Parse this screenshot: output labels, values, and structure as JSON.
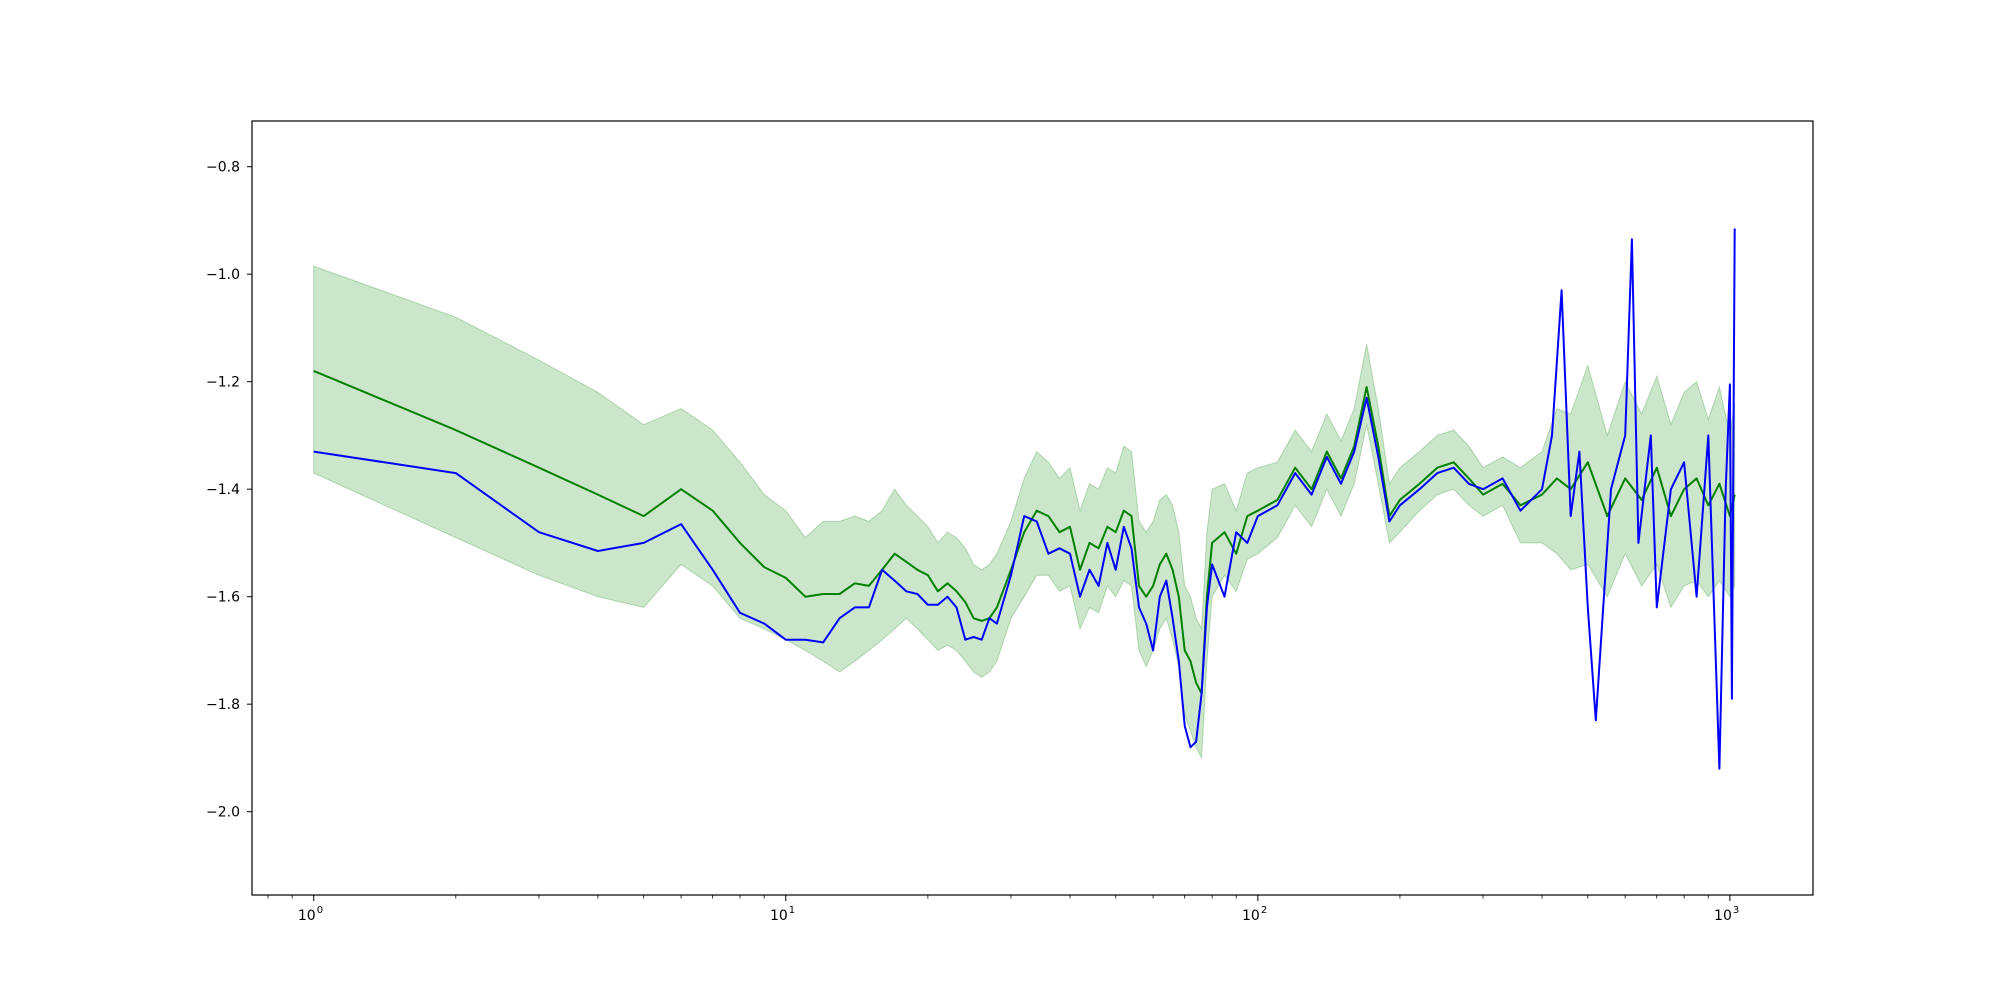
{
  "chart_data": {
    "type": "line",
    "title": "",
    "xlabel": "",
    "ylabel": "",
    "x_scale": "log",
    "xlim": [
      0.74,
      1500
    ],
    "ylim": [
      -2.155,
      -0.715
    ],
    "grid": false,
    "legend": "none",
    "x_ticks": [
      {
        "value": 1,
        "base": "10",
        "exp": "0"
      },
      {
        "value": 10,
        "base": "10",
        "exp": "1"
      },
      {
        "value": 100,
        "base": "10",
        "exp": "2"
      },
      {
        "value": 1000,
        "base": "10",
        "exp": "3"
      }
    ],
    "y_ticks": [
      {
        "value": -0.8,
        "label": "−0.8"
      },
      {
        "value": -1.0,
        "label": "−1.0"
      },
      {
        "value": -1.2,
        "label": "−1.2"
      },
      {
        "value": -1.4,
        "label": "−1.4"
      },
      {
        "value": -1.6,
        "label": "−1.6"
      },
      {
        "value": -1.8,
        "label": "−1.8"
      },
      {
        "value": -2.0,
        "label": "−2.0"
      }
    ],
    "series": [
      {
        "color": "#008000",
        "band_color": "#008000",
        "band_opacity": 0.2,
        "x": [
          1,
          2,
          3,
          4,
          5,
          6,
          7,
          8,
          9,
          10,
          11,
          12,
          13,
          14,
          15,
          16,
          17,
          18,
          19,
          20,
          21,
          22,
          23,
          24,
          25,
          26,
          27,
          28,
          30,
          32,
          34,
          36,
          38,
          40,
          42,
          44,
          46,
          48,
          50,
          52,
          54,
          56,
          58,
          60,
          62,
          64,
          66,
          68,
          70,
          72,
          74,
          76,
          78,
          80,
          85,
          90,
          95,
          100,
          110,
          120,
          130,
          140,
          150,
          160,
          170,
          180,
          190,
          200,
          220,
          240,
          260,
          280,
          300,
          330,
          360,
          400,
          430,
          460,
          500,
          550,
          600,
          650,
          700,
          750,
          800,
          850,
          900,
          950,
          1000,
          1024
        ],
        "y": [
          -1.18,
          -1.29,
          -1.36,
          -1.41,
          -1.45,
          -1.4,
          -1.44,
          -1.5,
          -1.545,
          -1.565,
          -1.6,
          -1.595,
          -1.595,
          -1.575,
          -1.58,
          -1.55,
          -1.52,
          -1.535,
          -1.55,
          -1.56,
          -1.59,
          -1.575,
          -1.59,
          -1.61,
          -1.64,
          -1.645,
          -1.64,
          -1.62,
          -1.55,
          -1.48,
          -1.44,
          -1.45,
          -1.48,
          -1.47,
          -1.55,
          -1.5,
          -1.51,
          -1.47,
          -1.48,
          -1.44,
          -1.45,
          -1.58,
          -1.6,
          -1.58,
          -1.54,
          -1.52,
          -1.55,
          -1.6,
          -1.7,
          -1.72,
          -1.76,
          -1.78,
          -1.6,
          -1.5,
          -1.48,
          -1.52,
          -1.45,
          -1.44,
          -1.42,
          -1.36,
          -1.4,
          -1.33,
          -1.38,
          -1.32,
          -1.21,
          -1.32,
          -1.45,
          -1.42,
          -1.39,
          -1.36,
          -1.35,
          -1.38,
          -1.41,
          -1.39,
          -1.43,
          -1.41,
          -1.38,
          -1.4,
          -1.35,
          -1.45,
          -1.38,
          -1.42,
          -1.36,
          -1.45,
          -1.4,
          -1.38,
          -1.43,
          -1.39,
          -1.45,
          -1.41
        ],
        "lower": [
          -1.37,
          -1.49,
          -1.56,
          -1.6,
          -1.62,
          -1.54,
          -1.58,
          -1.64,
          -1.66,
          -1.68,
          -1.7,
          -1.72,
          -1.74,
          -1.72,
          -1.7,
          -1.68,
          -1.66,
          -1.64,
          -1.66,
          -1.68,
          -1.7,
          -1.69,
          -1.7,
          -1.72,
          -1.74,
          -1.75,
          -1.74,
          -1.72,
          -1.64,
          -1.6,
          -1.56,
          -1.56,
          -1.59,
          -1.58,
          -1.66,
          -1.62,
          -1.63,
          -1.58,
          -1.6,
          -1.57,
          -1.58,
          -1.7,
          -1.73,
          -1.7,
          -1.66,
          -1.64,
          -1.68,
          -1.73,
          -1.82,
          -1.85,
          -1.88,
          -1.9,
          -1.72,
          -1.6,
          -1.56,
          -1.59,
          -1.53,
          -1.52,
          -1.49,
          -1.43,
          -1.47,
          -1.4,
          -1.45,
          -1.39,
          -1.28,
          -1.39,
          -1.5,
          -1.48,
          -1.44,
          -1.41,
          -1.4,
          -1.43,
          -1.45,
          -1.43,
          -1.5,
          -1.5,
          -1.52,
          -1.55,
          -1.54,
          -1.6,
          -1.52,
          -1.58,
          -1.54,
          -1.62,
          -1.58,
          -1.57,
          -1.6,
          -1.57,
          -1.6,
          -1.58
        ],
        "upper": [
          -0.985,
          -1.08,
          -1.16,
          -1.22,
          -1.28,
          -1.25,
          -1.29,
          -1.35,
          -1.41,
          -1.44,
          -1.49,
          -1.46,
          -1.46,
          -1.45,
          -1.46,
          -1.44,
          -1.4,
          -1.43,
          -1.45,
          -1.47,
          -1.5,
          -1.48,
          -1.49,
          -1.51,
          -1.54,
          -1.55,
          -1.54,
          -1.52,
          -1.46,
          -1.38,
          -1.33,
          -1.35,
          -1.38,
          -1.36,
          -1.44,
          -1.39,
          -1.4,
          -1.36,
          -1.37,
          -1.32,
          -1.33,
          -1.46,
          -1.48,
          -1.46,
          -1.42,
          -1.41,
          -1.43,
          -1.48,
          -1.58,
          -1.6,
          -1.64,
          -1.66,
          -1.48,
          -1.4,
          -1.39,
          -1.44,
          -1.37,
          -1.36,
          -1.35,
          -1.29,
          -1.33,
          -1.26,
          -1.31,
          -1.25,
          -1.13,
          -1.25,
          -1.39,
          -1.36,
          -1.33,
          -1.3,
          -1.29,
          -1.32,
          -1.36,
          -1.34,
          -1.36,
          -1.33,
          -1.25,
          -1.26,
          -1.17,
          -1.3,
          -1.2,
          -1.26,
          -1.19,
          -1.28,
          -1.22,
          -1.2,
          -1.27,
          -1.21,
          -1.3,
          -1.24
        ]
      },
      {
        "color": "#0000ff",
        "band_color": "#0000ff",
        "band_opacity": 0.2,
        "x": [
          1,
          2,
          3,
          4,
          5,
          6,
          7,
          8,
          9,
          10,
          11,
          12,
          13,
          14,
          15,
          16,
          17,
          18,
          19,
          20,
          21,
          22,
          23,
          24,
          25,
          26,
          27,
          28,
          30,
          32,
          34,
          36,
          38,
          40,
          42,
          44,
          46,
          48,
          50,
          52,
          54,
          56,
          58,
          60,
          62,
          64,
          66,
          68,
          70,
          72,
          74,
          76,
          78,
          80,
          85,
          90,
          95,
          100,
          110,
          120,
          130,
          140,
          150,
          160,
          170,
          180,
          190,
          200,
          220,
          240,
          260,
          280,
          300,
          330,
          360,
          400,
          420,
          440,
          460,
          480,
          500,
          520,
          560,
          600,
          620,
          640,
          680,
          700,
          750,
          800,
          850,
          900,
          950,
          980,
          1000,
          1010,
          1024
        ],
        "y": [
          -1.33,
          -1.37,
          -1.48,
          -1.515,
          -1.5,
          -1.465,
          -1.55,
          -1.63,
          -1.65,
          -1.68,
          -1.68,
          -1.685,
          -1.64,
          -1.62,
          -1.62,
          -1.55,
          -1.57,
          -1.59,
          -1.595,
          -1.615,
          -1.615,
          -1.6,
          -1.62,
          -1.68,
          -1.675,
          -1.68,
          -1.64,
          -1.65,
          -1.56,
          -1.45,
          -1.46,
          -1.52,
          -1.51,
          -1.52,
          -1.6,
          -1.55,
          -1.58,
          -1.5,
          -1.55,
          -1.47,
          -1.51,
          -1.62,
          -1.65,
          -1.7,
          -1.6,
          -1.57,
          -1.64,
          -1.72,
          -1.84,
          -1.88,
          -1.87,
          -1.78,
          -1.62,
          -1.54,
          -1.6,
          -1.48,
          -1.5,
          -1.45,
          -1.43,
          -1.37,
          -1.41,
          -1.34,
          -1.39,
          -1.33,
          -1.23,
          -1.34,
          -1.46,
          -1.43,
          -1.4,
          -1.37,
          -1.36,
          -1.39,
          -1.4,
          -1.38,
          -1.44,
          -1.4,
          -1.3,
          -1.03,
          -1.45,
          -1.33,
          -1.62,
          -1.83,
          -1.4,
          -1.3,
          -0.935,
          -1.5,
          -1.3,
          -1.62,
          -1.4,
          -1.35,
          -1.6,
          -1.3,
          -1.92,
          -1.4,
          -1.205,
          -1.79,
          -0.915
        ]
      }
    ]
  }
}
